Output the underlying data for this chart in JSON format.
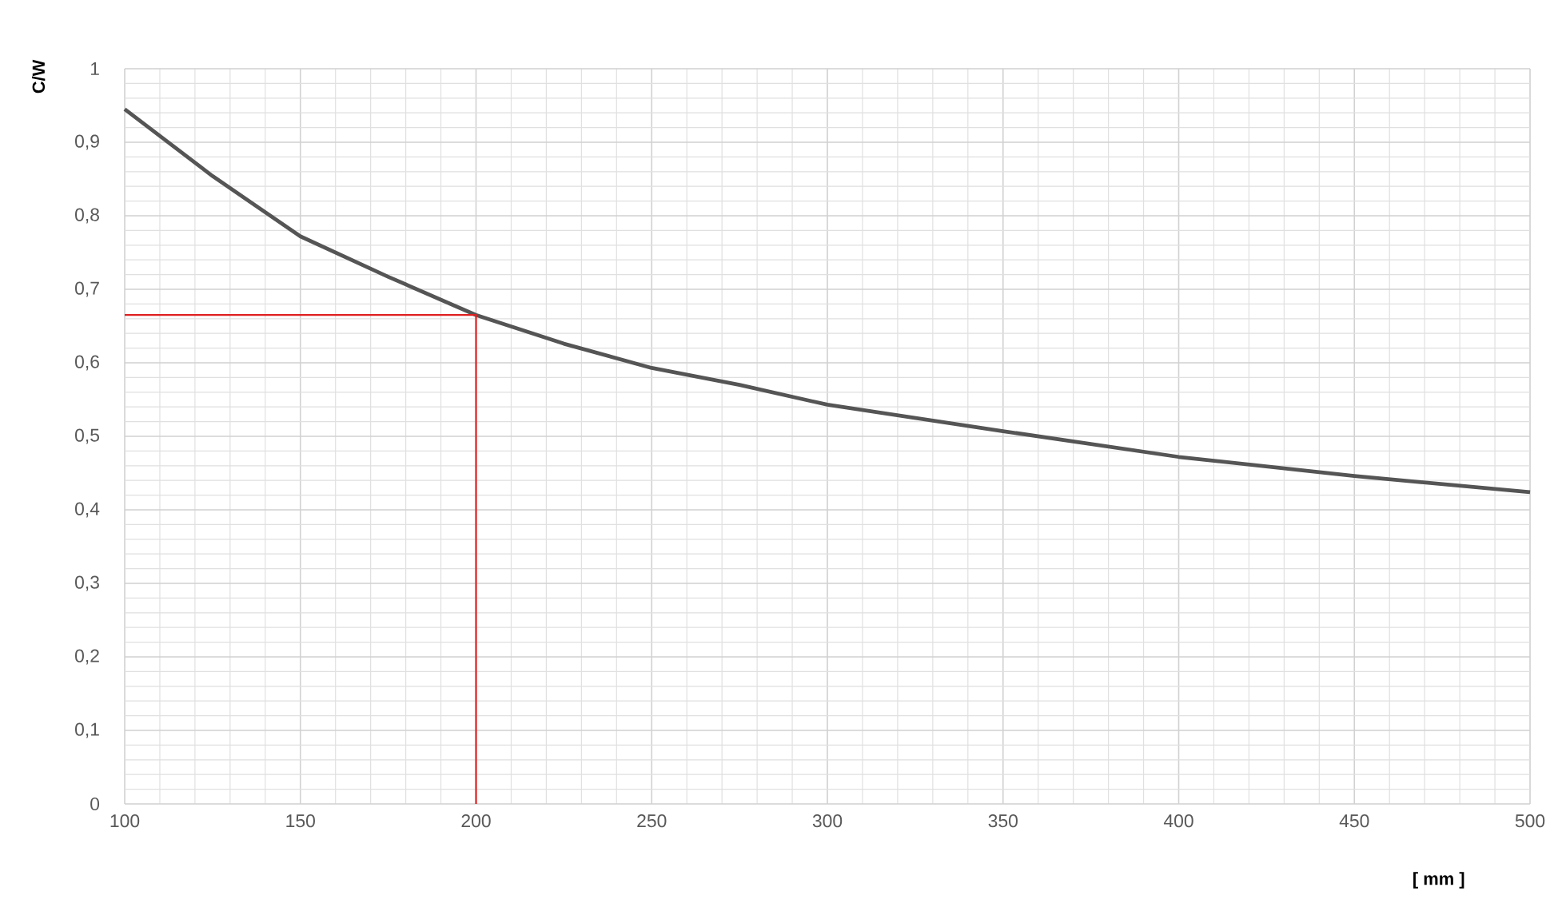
{
  "chart_data": {
    "type": "line",
    "xlabel": "[ mm ]",
    "ylabel": "C/W",
    "xlim": [
      100,
      500
    ],
    "ylim": [
      0,
      1
    ],
    "xticks": [
      100,
      150,
      200,
      250,
      300,
      350,
      400,
      450,
      500
    ],
    "yticks": [
      0,
      {
        "value": 0.1,
        "label": "0,1"
      },
      {
        "value": 0.2,
        "label": "0,2"
      },
      {
        "value": 0.3,
        "label": "0,3"
      },
      {
        "value": 0.4,
        "label": "0,4"
      },
      {
        "value": 0.5,
        "label": "0,5"
      },
      {
        "value": 0.6,
        "label": "0,6"
      },
      {
        "value": 0.7,
        "label": "0,7"
      },
      {
        "value": 0.8,
        "label": "0,8"
      },
      {
        "value": 0.9,
        "label": "0,9"
      },
      1
    ],
    "grid": true,
    "series": [
      {
        "color": "#555555",
        "x": [
          100,
          125,
          150,
          175,
          200,
          225,
          250,
          275,
          300,
          350,
          400,
          450,
          500
        ],
        "values": [
          0.945,
          0.854,
          0.772,
          0.717,
          0.665,
          0.626,
          0.593,
          0.57,
          0.543,
          0.507,
          0.472,
          0.446,
          0.424
        ]
      },
      {
        "color": "#e02020",
        "x": [
          100,
          200,
          200
        ],
        "values": [
          0.665,
          0.665,
          0
        ]
      }
    ]
  }
}
